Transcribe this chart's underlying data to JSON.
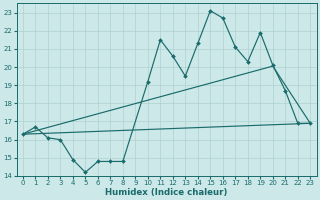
{
  "xlabel": "Humidex (Indice chaleur)",
  "bg_color": "#cde8e8",
  "line_color": "#1a6b6b",
  "grid_color": "#afd0d0",
  "xlim": [
    -0.5,
    23.5
  ],
  "ylim": [
    14,
    23.5
  ],
  "xticks": [
    0,
    1,
    2,
    3,
    4,
    5,
    6,
    7,
    8,
    9,
    10,
    11,
    12,
    13,
    14,
    15,
    16,
    17,
    18,
    19,
    20,
    21,
    22,
    23
  ],
  "yticks": [
    14,
    15,
    16,
    17,
    18,
    19,
    20,
    21,
    22,
    23
  ],
  "zigzag_x": [
    0,
    1,
    2,
    3,
    4,
    5,
    6,
    7,
    8,
    10,
    11,
    12,
    13,
    14,
    15,
    16,
    17,
    18,
    19,
    20,
    21,
    22,
    23
  ],
  "zigzag_y": [
    16.3,
    16.7,
    16.1,
    16.0,
    14.9,
    14.2,
    14.8,
    14.8,
    14.8,
    19.2,
    21.5,
    20.6,
    19.5,
    21.3,
    23.1,
    22.7,
    21.1,
    20.3,
    21.9,
    20.1,
    18.7,
    16.9,
    16.9
  ],
  "trend1_x": [
    0,
    20,
    23
  ],
  "trend1_y": [
    16.3,
    20.05,
    16.9
  ],
  "trend2_x": [
    0,
    23
  ],
  "trend2_y": [
    16.3,
    16.9
  ],
  "tick_fontsize": 5.0,
  "xlabel_fontsize": 6.2
}
